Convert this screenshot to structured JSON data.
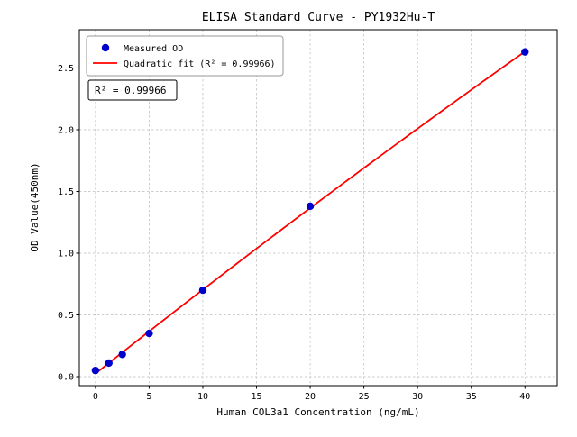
{
  "title": "ELISA Standard Curve - PY1932Hu-T",
  "annotation": "R² = 0.99966",
  "legend": {
    "measured": "Measured OD",
    "fit": "Quadratic fit (R² = 0.99966)"
  },
  "chart_data": {
    "type": "scatter",
    "title": "ELISA Standard Curve - PY1932Hu-T",
    "xlabel": "Human COL3a1 Concentration (ng/mL)",
    "ylabel": "OD Value(450nm)",
    "x": [
      0,
      1.25,
      2.5,
      5,
      10,
      20,
      40
    ],
    "y": [
      0.05,
      0.11,
      0.18,
      0.35,
      0.7,
      1.38,
      2.63
    ],
    "series": [
      {
        "name": "Measured OD",
        "type": "scatter"
      },
      {
        "name": "Quadratic fit (R² = 0.99966)",
        "type": "line"
      }
    ],
    "fit": {
      "type": "quadratic",
      "r_squared": 0.99966
    },
    "xticks": [
      0,
      5,
      10,
      15,
      20,
      25,
      30,
      35,
      40
    ],
    "yticks": [
      0,
      0.5,
      1,
      1.5,
      2,
      2.5
    ],
    "xlim": [
      -1.5,
      43
    ],
    "ylim": [
      -0.073,
      2.81
    ],
    "grid": true,
    "grid_style": "dashed",
    "legend_position": "upper left",
    "colors": {
      "point": "#0000cc",
      "line": "#ff0000",
      "grid": "#bbbbbb",
      "axis": "#000000",
      "legend_border": "#999999"
    }
  }
}
